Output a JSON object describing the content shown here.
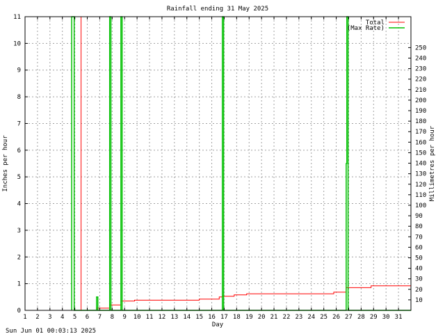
{
  "chart_data": {
    "type": "line",
    "title": "Rainfall ending 31 May 2025",
    "xlabel": "Day",
    "ylabel": "Inches per hour",
    "y2label": "Millimetres per hour",
    "footer": "Sun Jun 01 00:03:13 2025",
    "xlim": [
      1,
      32
    ],
    "ylim": [
      0,
      11
    ],
    "y2lim": [
      0,
      279.4
    ],
    "xticks": [
      "1",
      "2",
      "3",
      "4",
      "5",
      "6",
      "7",
      "8",
      "9",
      "10",
      "11",
      "12",
      "13",
      "14",
      "15",
      "16",
      "17",
      "18",
      "19",
      "20",
      "21",
      "22",
      "23",
      "24",
      "25",
      "26",
      "27",
      "28",
      "29",
      "30",
      "31"
    ],
    "yticks": [
      "0",
      "1",
      "2",
      "3",
      "4",
      "5",
      "6",
      "7",
      "8",
      "9",
      "10",
      "11"
    ],
    "y2ticks": [
      "10",
      "20",
      "30",
      "40",
      "50",
      "60",
      "70",
      "80",
      "90",
      "100",
      "110",
      "120",
      "130",
      "140",
      "150",
      "160",
      "170",
      "180",
      "190",
      "200",
      "210",
      "220",
      "230",
      "240",
      "250"
    ],
    "grid": true,
    "legend_position": "top-right",
    "colors": {
      "total": "#ff0000",
      "max_rate": "#00c000"
    },
    "series": [
      {
        "name": "Total",
        "color": "#ff0000",
        "points": [
          [
            5.5,
            11
          ],
          [
            5.5,
            0
          ],
          [
            6.75,
            0
          ],
          [
            6.75,
            0.08
          ],
          [
            7.8,
            0.08
          ],
          [
            7.8,
            0.2
          ],
          [
            8.7,
            0.2
          ],
          [
            8.7,
            0.35
          ],
          [
            9.8,
            0.35
          ],
          [
            9.8,
            0.38
          ],
          [
            15.0,
            0.38
          ],
          [
            15.0,
            0.42
          ],
          [
            16.6,
            0.42
          ],
          [
            16.6,
            0.5
          ],
          [
            16.85,
            0.5
          ],
          [
            16.85,
            0.53
          ],
          [
            17.8,
            0.53
          ],
          [
            17.8,
            0.58
          ],
          [
            18.8,
            0.58
          ],
          [
            18.8,
            0.62
          ],
          [
            25.8,
            0.62
          ],
          [
            25.8,
            0.68
          ],
          [
            26.8,
            0.68
          ],
          [
            26.8,
            0.85
          ],
          [
            28.8,
            0.85
          ],
          [
            28.8,
            0.92
          ],
          [
            32,
            0.92
          ]
        ]
      },
      {
        "name": "(Max Rate)",
        "color": "#00c000",
        "points": [
          [
            4.75,
            0
          ],
          [
            4.75,
            11
          ],
          [
            4.95,
            11
          ],
          [
            4.95,
            0
          ],
          [
            6.75,
            0
          ],
          [
            6.75,
            0.5
          ],
          [
            6.85,
            0.5
          ],
          [
            6.85,
            0
          ],
          [
            7.8,
            0
          ],
          [
            7.8,
            11
          ],
          [
            7.9,
            11
          ],
          [
            7.9,
            0
          ],
          [
            8.7,
            0
          ],
          [
            8.7,
            11
          ],
          [
            8.8,
            11
          ],
          [
            8.8,
            0
          ],
          [
            16.85,
            0
          ],
          [
            16.85,
            11
          ],
          [
            16.95,
            11
          ],
          [
            16.95,
            0
          ],
          [
            26.8,
            0
          ],
          [
            26.8,
            5.5
          ],
          [
            26.85,
            5.5
          ],
          [
            26.85,
            11
          ],
          [
            26.95,
            11
          ],
          [
            26.95,
            0
          ],
          [
            32,
            0
          ]
        ]
      }
    ]
  }
}
